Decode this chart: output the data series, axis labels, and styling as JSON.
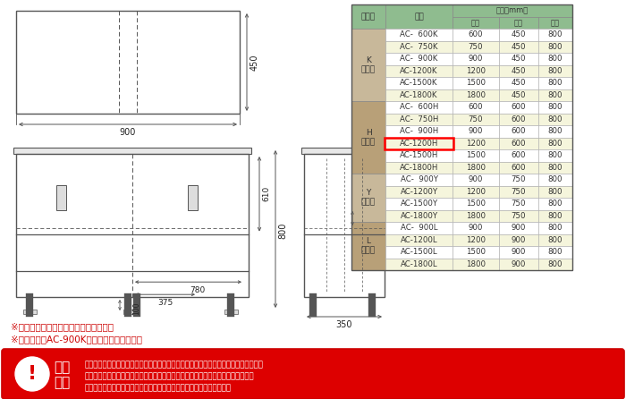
{
  "table_header_bg": "#8fbc8f",
  "row_bg_light": "#ffffff",
  "row_bg_alt": "#f5f5dc",
  "type_bg_K": "#c8b89a",
  "type_bg_H": "#b8a078",
  "type_bg_Y": "#c8b89a",
  "type_bg_L": "#b8a078",
  "highlight_border": "#ff0000",
  "note1": "※赤枚で囲まれた商品のみの販売です。",
  "note2": "※寸法図は『AC-900K』タイプのものです。",
  "caution_text_lines": [
    "配達は「軒先渡し」になります。大型商品の場合、荷降ろしの補助をお願い致します。",
    "商品改良のため、仕様・外観など予告なく変更する場合があります。また、画像と",
    "商品の色が若干異なる場合がありますので、あらかじめご了承下さい。"
  ],
  "bg_color": "#ffffff",
  "lc": "#555555",
  "types_data": [
    {
      "name": "K\nタイプ",
      "bg": "#c8b89a",
      "rows": [
        [
          "AC-  600K",
          600,
          450,
          800
        ],
        [
          "AC-  750K",
          750,
          450,
          800
        ],
        [
          "AC-  900K",
          900,
          450,
          800
        ],
        [
          "AC-1200K",
          1200,
          450,
          800
        ],
        [
          "AC-1500K",
          1500,
          450,
          800
        ],
        [
          "AC-1800K",
          1800,
          450,
          800
        ]
      ]
    },
    {
      "name": "H\nタイプ",
      "bg": "#b8a078",
      "rows": [
        [
          "AC-  600H",
          600,
          600,
          800
        ],
        [
          "AC-  750H",
          750,
          600,
          800
        ],
        [
          "AC-  900H",
          900,
          600,
          800
        ],
        [
          "AC-1200H",
          1200,
          600,
          800
        ],
        [
          "AC-1500H",
          1500,
          600,
          800
        ],
        [
          "AC-1800H",
          1800,
          600,
          800
        ]
      ]
    },
    {
      "name": "Y\nタイプ",
      "bg": "#c8b89a",
      "rows": [
        [
          "AC-  900Y",
          900,
          750,
          800
        ],
        [
          "AC-1200Y",
          1200,
          750,
          800
        ],
        [
          "AC-1500Y",
          1500,
          750,
          800
        ],
        [
          "AC-1800Y",
          1800,
          750,
          800
        ]
      ]
    },
    {
      "name": "L\nタイプ",
      "bg": "#b8a078",
      "rows": [
        [
          "AC-  900L",
          900,
          900,
          800
        ],
        [
          "AC-1200L",
          1200,
          900,
          800
        ],
        [
          "AC-1500L",
          1500,
          900,
          800
        ],
        [
          "AC-1800L",
          1800,
          900,
          800
        ]
      ]
    }
  ]
}
